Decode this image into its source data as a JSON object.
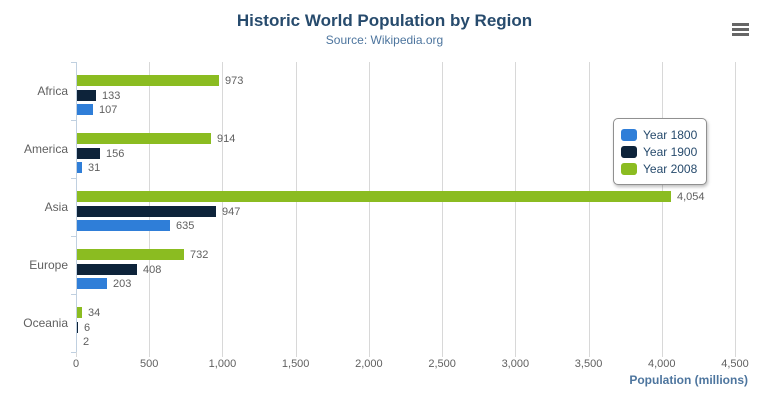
{
  "chart_data": {
    "type": "bar",
    "orientation": "horizontal",
    "title": "Historic World Population by Region",
    "subtitle": "Source: Wikipedia.org",
    "categories": [
      "Africa",
      "America",
      "Asia",
      "Europe",
      "Oceania"
    ],
    "series": [
      {
        "name": "Year 1800",
        "color": "#2f7ed8",
        "values": [
          107,
          31,
          635,
          203,
          2
        ]
      },
      {
        "name": "Year 1900",
        "color": "#0d233a",
        "values": [
          133,
          156,
          947,
          408,
          6
        ]
      },
      {
        "name": "Year 2008",
        "color": "#8bbc21",
        "values": [
          973,
          914,
          4054,
          732,
          34
        ]
      }
    ],
    "visual_order_top_to_bottom": [
      "Year 2008",
      "Year 1900",
      "Year 1800"
    ],
    "xlabel": "Population (millions)",
    "ylabel": "",
    "xlim": [
      0,
      4500
    ],
    "x_tick_step": 500,
    "x_tick_labels": [
      "0",
      "500",
      "1,000",
      "1,500",
      "2,000",
      "2,500",
      "3,000",
      "3,500",
      "4,000",
      "4,500"
    ],
    "grid": true,
    "legend_position": "right",
    "data_labels_visible": true
  },
  "toolbar": {
    "export_menu_icon": "hamburger-menu-icon"
  },
  "theme": {
    "title_color": "#274b6d",
    "subtitle_color": "#4d759e",
    "axis_title_color": "#4d759e",
    "label_color": "#606060",
    "gridline_color": "#d8d8d8",
    "axis_line_color": "#c0d0e0",
    "legend_text_color": "#274b6d"
  }
}
